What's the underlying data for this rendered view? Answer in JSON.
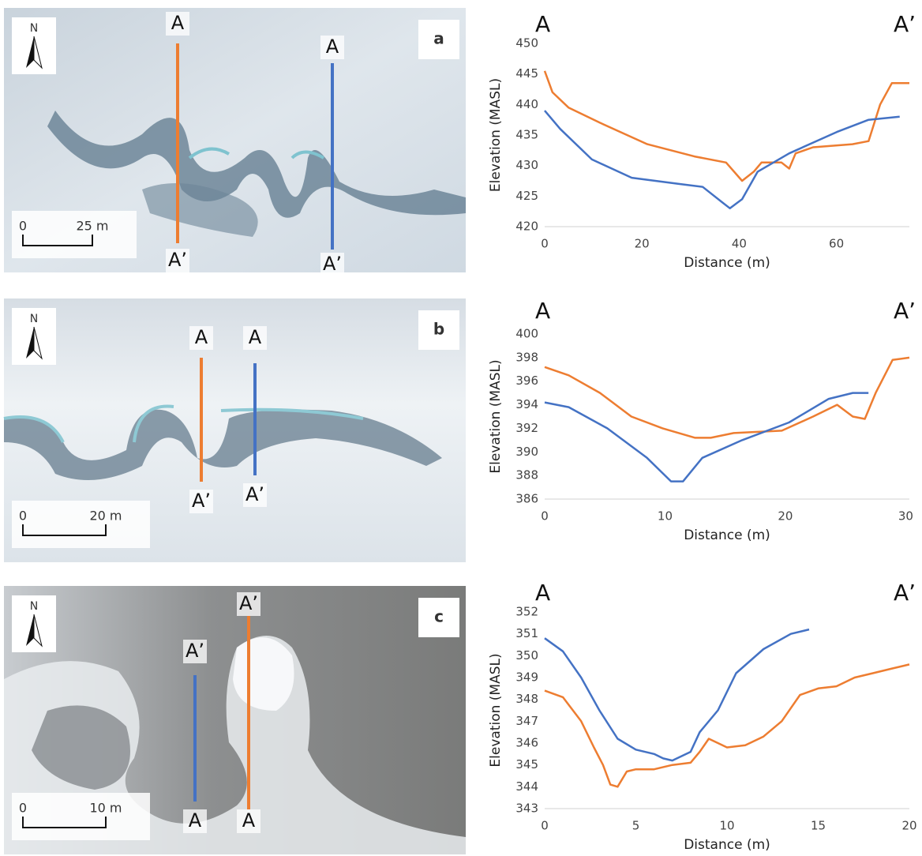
{
  "chart_data": [
    {
      "type": "line",
      "ylabel": "Elevation (MASL)",
      "xlabel": "Distance (m)",
      "annotations": [
        "A",
        "A’"
      ],
      "xlim": [
        0,
        75
      ],
      "xticks": [
        0,
        20,
        40,
        60
      ],
      "ylim": [
        420,
        450
      ],
      "yticks": [
        420,
        425,
        430,
        435,
        440,
        445,
        450
      ],
      "series": [
        {
          "color": "#ed7d31",
          "x": [
            0,
            1.6,
            4.9,
            11.4,
            21.1,
            30.8,
            37.3,
            40.6,
            43,
            44.6,
            48.7,
            50.3,
            51.6,
            55.2,
            63.3,
            66.6,
            69,
            71.4,
            75
          ],
          "values": [
            445.5,
            442,
            439.5,
            437,
            433.5,
            431.5,
            430.5,
            427.5,
            429,
            430.5,
            430.5,
            429.5,
            432,
            433,
            433.5,
            434,
            440,
            443.5,
            443.5
          ]
        },
        {
          "color": "#4472c4",
          "x": [
            0,
            3.2,
            9.7,
            17.9,
            27.6,
            32.5,
            36.5,
            38.1,
            40.6,
            43.8,
            50.3,
            60.1,
            66.6,
            73
          ],
          "values": [
            439,
            436,
            431,
            428,
            427,
            426.5,
            424,
            423,
            424.5,
            429,
            432,
            435.5,
            437.5,
            438
          ]
        }
      ]
    },
    {
      "type": "line",
      "ylabel": "Elevation (MASL)",
      "xlabel": "Distance (m)",
      "annotations": [
        "A",
        "A’"
      ],
      "xlim": [
        0,
        30.3
      ],
      "xticks": [
        0,
        10,
        20,
        30
      ],
      "ylim": [
        386,
        400
      ],
      "yticks": [
        386,
        388,
        390,
        392,
        394,
        396,
        398,
        400
      ],
      "series": [
        {
          "color": "#ed7d31",
          "x": [
            0,
            2,
            4.6,
            7.2,
            9.8,
            12.5,
            13.8,
            15.7,
            19.7,
            22.3,
            24.3,
            25.6,
            26.6,
            27.5,
            28.9,
            30.3
          ],
          "values": [
            397.2,
            396.5,
            395,
            393,
            392,
            391.2,
            391.2,
            391.6,
            391.8,
            393,
            394,
            393,
            392.8,
            395,
            397.8,
            398
          ]
        },
        {
          "color": "#4472c4",
          "x": [
            0,
            2,
            5.2,
            8.5,
            10.5,
            11.5,
            13.1,
            16.4,
            20.3,
            23.6,
            25.6,
            26.9
          ],
          "values": [
            394.2,
            393.8,
            392,
            389.5,
            387.5,
            387.5,
            389.5,
            391,
            392.5,
            394.5,
            395,
            395
          ]
        }
      ]
    },
    {
      "type": "line",
      "ylabel": "Elevation (MASL)",
      "xlabel": "Distance (m)",
      "annotations": [
        "A",
        "A’"
      ],
      "xlim": [
        0,
        20
      ],
      "xticks": [
        0,
        5,
        10,
        15,
        20
      ],
      "ylim": [
        343,
        352
      ],
      "yticks": [
        343,
        344,
        345,
        346,
        347,
        348,
        349,
        350,
        351,
        352
      ],
      "series": [
        {
          "color": "#4472c4",
          "x": [
            0,
            1,
            2,
            3,
            4,
            5,
            6,
            6.5,
            7,
            8,
            8.5,
            9.5,
            10.5,
            12,
            13.5,
            14.5
          ],
          "values": [
            350.8,
            350.2,
            349,
            347.5,
            346.2,
            345.7,
            345.5,
            345.3,
            345.2,
            345.6,
            346.5,
            347.5,
            349.2,
            350.3,
            351,
            351.2
          ]
        },
        {
          "color": "#ed7d31",
          "x": [
            0,
            1,
            2,
            2.7,
            3.2,
            3.6,
            4,
            4.5,
            5,
            6,
            7,
            8,
            8.5,
            9,
            9.5,
            10,
            11,
            12,
            13,
            14,
            15,
            16,
            17,
            18,
            19,
            20
          ],
          "values": [
            348.4,
            348.1,
            347,
            345.8,
            345,
            344.1,
            344,
            344.7,
            344.8,
            344.8,
            345,
            345.1,
            345.6,
            346.2,
            346,
            345.8,
            345.9,
            346.3,
            347,
            348.2,
            348.5,
            348.6,
            349,
            349.2,
            349.4,
            349.6
          ]
        }
      ]
    }
  ],
  "maps": [
    {
      "label": "a",
      "north": "N",
      "scale": [
        "0",
        "25 m"
      ],
      "transects": [
        {
          "color": "#ed7d31",
          "top": "A",
          "bottom": "A’"
        },
        {
          "color": "#4472c4",
          "top": "A",
          "bottom": "A’"
        }
      ]
    },
    {
      "label": "b",
      "north": "N",
      "scale": [
        "0",
        "20 m"
      ],
      "transects": [
        {
          "color": "#ed7d31",
          "top": "A",
          "bottom": "A’"
        },
        {
          "color": "#4472c4",
          "top": "A",
          "bottom": "A’"
        }
      ]
    },
    {
      "label": "c",
      "north": "N",
      "scale": [
        "0",
        "10 m"
      ],
      "transects": [
        {
          "color": "#4472c4",
          "top": "A’",
          "bottom": "A"
        },
        {
          "color": "#ed7d31",
          "top": "A’",
          "bottom": "A"
        }
      ]
    }
  ]
}
